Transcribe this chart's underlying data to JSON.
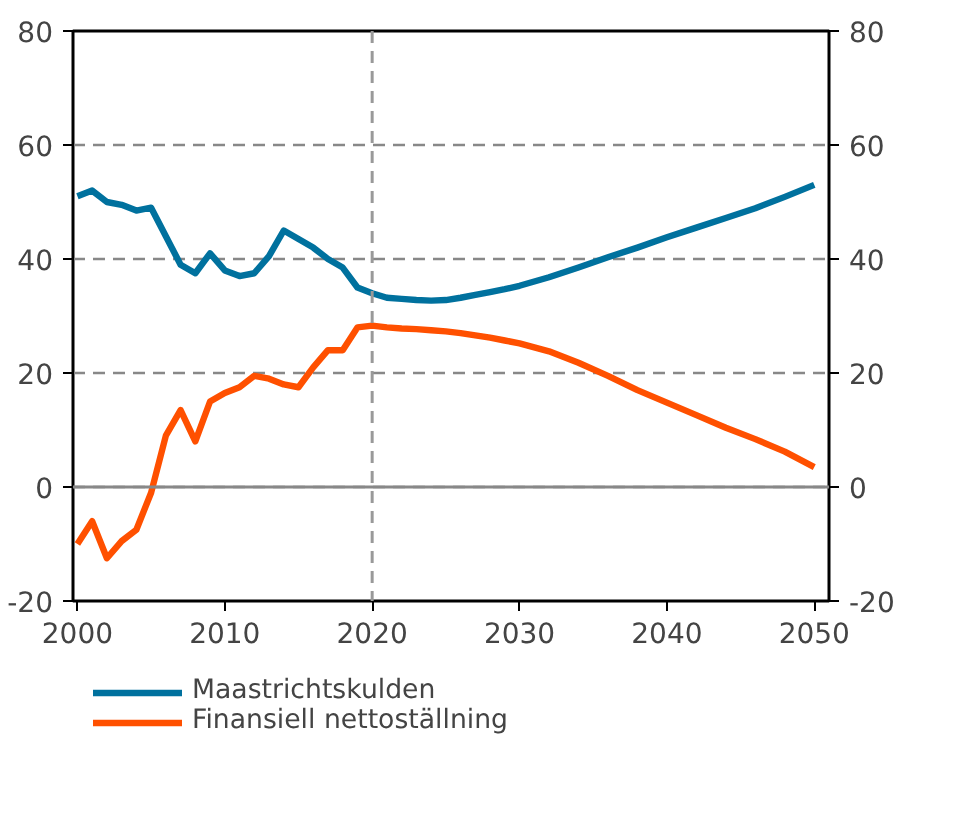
{
  "chart_data": {
    "type": "line",
    "x": [
      2000,
      2001,
      2002,
      2003,
      2004,
      2005,
      2006,
      2007,
      2008,
      2009,
      2010,
      2011,
      2012,
      2013,
      2014,
      2015,
      2016,
      2017,
      2018,
      2019,
      2020,
      2021,
      2022,
      2023,
      2024,
      2025,
      2026,
      2027,
      2028,
      2029,
      2030,
      2032,
      2034,
      2036,
      2038,
      2040,
      2042,
      2044,
      2046,
      2048,
      2050
    ],
    "series": [
      {
        "name": "Maastrichtskulden",
        "color": "#00719e",
        "values": [
          51,
          52,
          50,
          49.5,
          48.5,
          49,
          44,
          39,
          37.5,
          41,
          38,
          37,
          37.5,
          40.5,
          45,
          43.5,
          42,
          40,
          38.5,
          35,
          34,
          33.2,
          33,
          32.8,
          32.7,
          32.8,
          33.2,
          33.7,
          34.2,
          34.7,
          35.3,
          36.8,
          38.5,
          40.3,
          42,
          43.8,
          45.5,
          47.2,
          48.9,
          50.9,
          53
        ]
      },
      {
        "name": "Finansiell nettoställning",
        "color": "#ff5000",
        "values": [
          -10,
          -6,
          -12.5,
          -9.5,
          -7.5,
          -1,
          9,
          13.5,
          8,
          15,
          16.5,
          17.5,
          19.5,
          19,
          18,
          17.5,
          21,
          24,
          24,
          28,
          28.3,
          28,
          27.8,
          27.7,
          27.5,
          27.3,
          27,
          26.6,
          26.2,
          25.7,
          25.2,
          23.8,
          21.8,
          19.5,
          17,
          14.8,
          12.6,
          10.4,
          8.4,
          6.2,
          3.5
        ]
      }
    ],
    "xlim": [
      1999.7,
      2051
    ],
    "xticks": [
      2000,
      2010,
      2020,
      2030,
      2040,
      2050
    ],
    "ylim": [
      -20,
      80
    ],
    "yticks": [
      -20,
      0,
      20,
      40,
      60,
      80
    ],
    "y2lim": [
      -20,
      80
    ],
    "y2ticks": [
      -20,
      0,
      20,
      40,
      60,
      80
    ],
    "ref_lines": [
      {
        "axis": "x",
        "value": 2020,
        "color": "#999999",
        "line_style": "dashed"
      },
      {
        "axis": "y",
        "value": 0,
        "color": "#888888",
        "line_style": "solid"
      }
    ],
    "grid": "y",
    "legend": "bottom",
    "marker": "none",
    "line_style": "solid"
  }
}
